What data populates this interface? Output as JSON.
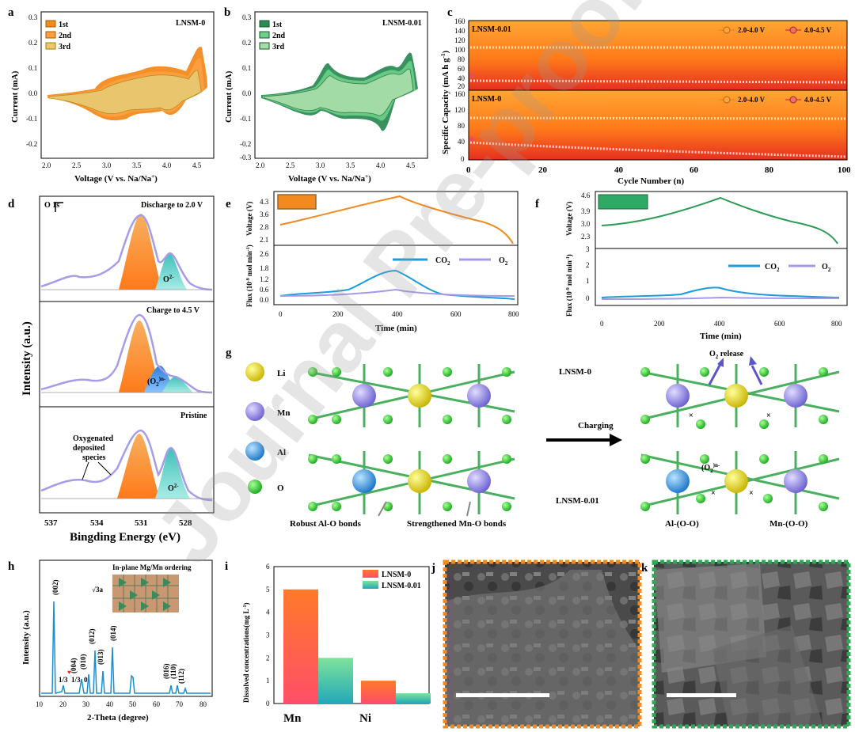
{
  "colors": {
    "orange": "#f28a1e",
    "green": "#2e8b57",
    "blue": "#1f9bd9",
    "lavender": "#a39be6",
    "red": "#e0443a",
    "teal": "#3fc0b8"
  },
  "watermark": "Journal Pre-proof",
  "panels": {
    "a": {
      "label": "a",
      "sample": "LNSM-0",
      "legend": [
        "1st",
        "2nd",
        "3rd"
      ],
      "xlabel": "Voltage (V vs. Na/Na",
      "xlabel_sup": "+",
      "xlabel_end": ")",
      "ylabel": "Current (mA)",
      "xticks": [
        "2.0",
        "2.5",
        "3.0",
        "3.5",
        "4.0",
        "4.5"
      ],
      "yticks": [
        "0.3",
        "0.2",
        "0.1",
        "0.0",
        "-0.1",
        "-0.2"
      ]
    },
    "b": {
      "label": "b",
      "sample": "LNSM-0.01",
      "legend": [
        "1st",
        "2nd",
        "3rd"
      ],
      "xlabel": "Voltage (V vs. Na/Na",
      "xlabel_sup": "+",
      "xlabel_end": ")",
      "ylabel": "Current (mA)",
      "xticks": [
        "2.0",
        "2.5",
        "3.0",
        "3.5",
        "4.0",
        "4.5"
      ],
      "yticks": [
        "0.3",
        "0.2",
        "0.1",
        "0.0",
        "-0.1",
        "-0.2",
        "-0.3"
      ]
    },
    "c": {
      "label": "c",
      "top_sample": "LNSM-0.01",
      "bottom_sample": "LNSM-0",
      "legend": [
        "2.0-4.0 V",
        "4.0-4.5 V"
      ],
      "xlabel": "Cycle Number (n)",
      "ylabel": "Specific Capacity (mA h g",
      "ylabel_sup": "-1",
      "ylabel_end": ")",
      "xticks": [
        "0",
        "20",
        "40",
        "60",
        "80",
        "100"
      ],
      "yticks_top": [
        "160",
        "140",
        "120",
        "100",
        "80",
        "60",
        "40",
        "20"
      ],
      "yticks_bottom": [
        "160",
        "120",
        "80",
        "40",
        "0"
      ]
    },
    "d": {
      "label": "d",
      "scale": "O 1s",
      "rows": [
        "Discharge to 2.0 V",
        "Charge to 4.5 V",
        "Pristine"
      ],
      "o2": "O",
      "o2_sup": "2-",
      "o2n": "(O",
      "o2n_sub": "2",
      "o2n_sup": ")n-",
      "annot": [
        "Oxygenated",
        "deposited",
        "species"
      ],
      "xlabel": "Bingding Energy (eV)",
      "ylabel": "Intensity (a.u.)",
      "xticks": [
        "537",
        "534",
        "531",
        "528"
      ]
    },
    "e": {
      "label": "e",
      "ylabel_top": "Voltage (V)",
      "ylabel_bottom": "Flux (10",
      "ylabel_bottom_sup": "-9",
      "ylabel_bottom_end": " mol min",
      "ylabel_bottom_sup2": "-1",
      "ylabel_bottom_end2": ")",
      "yticks_top": [
        "4.3",
        "3.6",
        "2.8",
        "2.1"
      ],
      "yticks_bottom": [
        "2.6",
        "1.8",
        "1.2",
        "0.6",
        "0.0"
      ],
      "xticks": [
        "0",
        "200",
        "400",
        "600",
        "800"
      ],
      "xlabel": "Time (min)",
      "legend": [
        "CO",
        "O"
      ]
    },
    "f": {
      "label": "f",
      "ylabel_top": "Voltage (V)",
      "ylabel_bottom": "Flux (10",
      "ylabel_bottom_sup": "-9",
      "ylabel_bottom_end": " mol min",
      "ylabel_bottom_sup2": "-1",
      "ylabel_bottom_end2": ")",
      "yticks_top": [
        "4.6",
        "3.9",
        "3.0",
        "2.3"
      ],
      "yticks_bottom": [
        "3",
        "2",
        "1",
        "0"
      ],
      "extra_tick": "3",
      "xticks": [
        "0",
        "200",
        "400",
        "600",
        "800"
      ],
      "xlabel": "Time (min)",
      "legend": [
        "CO",
        "O"
      ]
    },
    "g": {
      "label": "g",
      "atoms": [
        "Li",
        "Mn",
        "Al",
        "O"
      ],
      "charging": "Charging",
      "row1": "LNSM-0",
      "row2": "LNSM-0.01",
      "release": "O",
      "release_sub": "2",
      "release_end": " release",
      "o2n": "(O",
      "o2n_sub": "2",
      "o2n_sup": ")n-",
      "bond1": "Robust Al-O bonds",
      "bond2": "Strengthened Mn-O bonds",
      "prod1": "Al-(O-O)",
      "prod2": "Mn-(O-O)"
    },
    "h": {
      "label": "h",
      "inset": "In-plane Mg/Mn ordering",
      "root": "√3a",
      "peaks": [
        "(002)",
        "(004)",
        "(010)",
        "(012)",
        "(013)",
        "(014)",
        "(016)",
        "(110)",
        "(112)"
      ],
      "super": [
        "1/3",
        "1/3",
        "0"
      ],
      "xlabel": "2-Theta (degree)",
      "ylabel": "Intensity (a.u.)",
      "xticks": [
        "10",
        "20",
        "30",
        "40",
        "50",
        "60",
        "70",
        "80"
      ]
    },
    "i": {
      "label": "i",
      "legend": [
        "LNSM-0",
        "LNSM-0.01"
      ],
      "ylabel": "Dissolved concentrations(mg L",
      "ylabel_sup": "-1",
      "ylabel_end": ")",
      "yticks": [
        "6",
        "5",
        "4",
        "3",
        "2",
        "1",
        "0"
      ]
    },
    "j": {
      "label": "j"
    },
    "k": {
      "label": "k"
    }
  },
  "chart_data": {
    "type": "bar",
    "categories": [
      "Mn",
      "Ni"
    ],
    "series": [
      {
        "name": "LNSM-0",
        "values": [
          5.0,
          1.0
        ]
      },
      {
        "name": "LNSM-0.01",
        "values": [
          2.0,
          0.45
        ]
      }
    ],
    "ylim": [
      0,
      6
    ],
    "ylabel": "Dissolved concentrations(mg L-1)"
  }
}
